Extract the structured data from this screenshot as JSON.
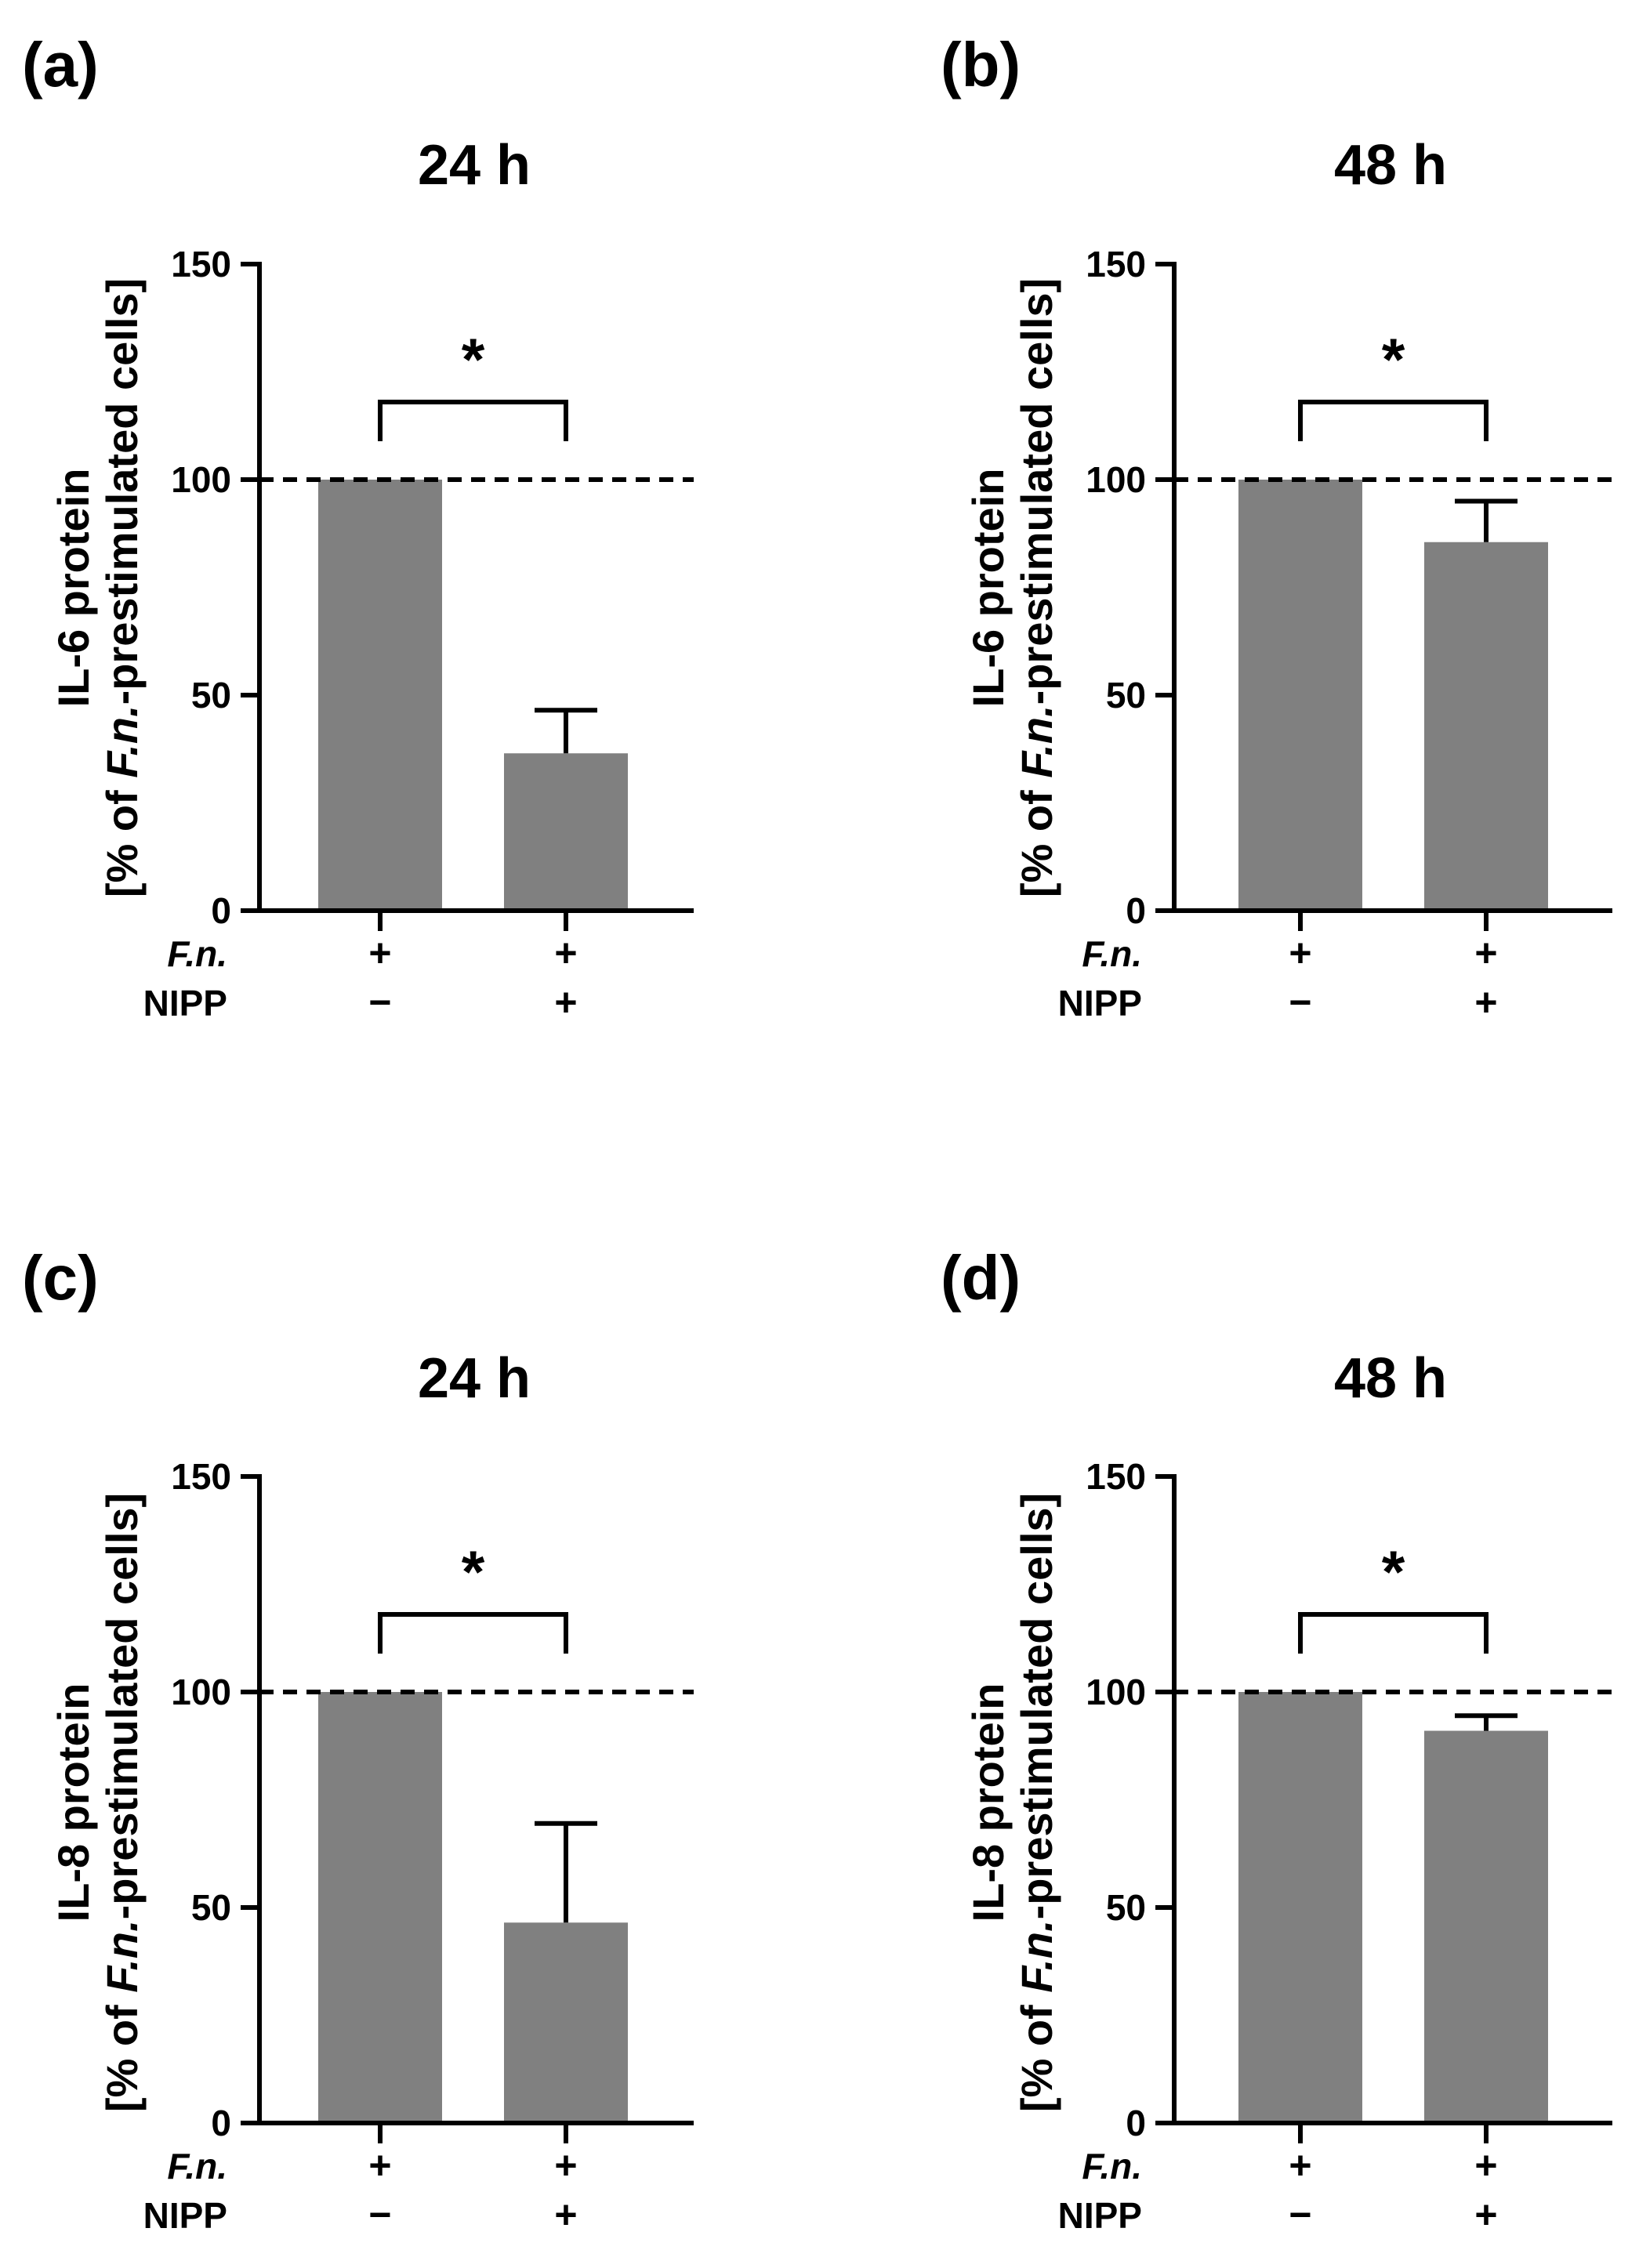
{
  "figure": {
    "panels": [
      {
        "label": "(a)"
      },
      {
        "label": "(b)"
      },
      {
        "label": "(c)"
      },
      {
        "label": "(d)"
      }
    ]
  },
  "row_labels": {
    "fn": "F.n.",
    "nipp": "NIPP"
  },
  "chart_data": [
    {
      "type": "bar",
      "panel": "(a)",
      "title": "24 h",
      "ylabel_line1": "IL-6 protein",
      "ylabel_line2_pre": "[% of ",
      "ylabel_line2_italic": "F.n.",
      "ylabel_line2_post": "-prestimulated cells]",
      "ylim": [
        0,
        150
      ],
      "yticks": [
        0,
        50,
        100,
        150
      ],
      "reference_line": 100,
      "categories": [
        "F.n. + / NIPP −",
        "F.n. + / NIPP +"
      ],
      "treatments": [
        {
          "fn": "+",
          "nipp": "−"
        },
        {
          "fn": "+",
          "nipp": "+"
        }
      ],
      "values": [
        100,
        36.5
      ],
      "errors": [
        0,
        10
      ],
      "significance": {
        "between": [
          0,
          1
        ],
        "bracket_y": 118,
        "label": "*"
      },
      "color": "#808080"
    },
    {
      "type": "bar",
      "panel": "(b)",
      "title": "48 h",
      "ylabel_line1": "IL-6 protein",
      "ylabel_line2_pre": "[% of ",
      "ylabel_line2_italic": "F.n.",
      "ylabel_line2_post": "-prestimulated cells]",
      "ylim": [
        0,
        150
      ],
      "yticks": [
        0,
        50,
        100,
        150
      ],
      "reference_line": 100,
      "categories": [
        "F.n. + / NIPP −",
        "F.n. + / NIPP +"
      ],
      "treatments": [
        {
          "fn": "+",
          "nipp": "−"
        },
        {
          "fn": "+",
          "nipp": "+"
        }
      ],
      "values": [
        100,
        85.5
      ],
      "errors": [
        0,
        9.5
      ],
      "significance": {
        "between": [
          0,
          1
        ],
        "bracket_y": 118,
        "label": "*"
      },
      "color": "#808080"
    },
    {
      "type": "bar",
      "panel": "(c)",
      "title": "24 h",
      "ylabel_line1": "IL-8 protein",
      "ylabel_line2_pre": "[% of ",
      "ylabel_line2_italic": "F.n.",
      "ylabel_line2_post": "-prestimulated cells]",
      "ylim": [
        0,
        150
      ],
      "yticks": [
        0,
        50,
        100,
        150
      ],
      "reference_line": 100,
      "categories": [
        "F.n. + / NIPP −",
        "F.n. + / NIPP +"
      ],
      "treatments": [
        {
          "fn": "+",
          "nipp": "−"
        },
        {
          "fn": "+",
          "nipp": "+"
        }
      ],
      "values": [
        100,
        46.5
      ],
      "errors": [
        0,
        23
      ],
      "significance": {
        "between": [
          0,
          1
        ],
        "bracket_y": 118,
        "label": "*"
      },
      "color": "#808080"
    },
    {
      "type": "bar",
      "panel": "(d)",
      "title": "48 h",
      "ylabel_line1": "IL-8 protein",
      "ylabel_line2_pre": "[% of ",
      "ylabel_line2_italic": "F.n.",
      "ylabel_line2_post": "-prestimulated cells]",
      "ylim": [
        0,
        150
      ],
      "yticks": [
        0,
        50,
        100,
        150
      ],
      "reference_line": 100,
      "categories": [
        "F.n. + / NIPP −",
        "F.n. + / NIPP +"
      ],
      "treatments": [
        {
          "fn": "+",
          "nipp": "−"
        },
        {
          "fn": "+",
          "nipp": "+"
        }
      ],
      "values": [
        100,
        91
      ],
      "errors": [
        0,
        3.5
      ],
      "significance": {
        "between": [
          0,
          1
        ],
        "bracket_y": 118,
        "label": "*"
      },
      "color": "#808080"
    }
  ]
}
